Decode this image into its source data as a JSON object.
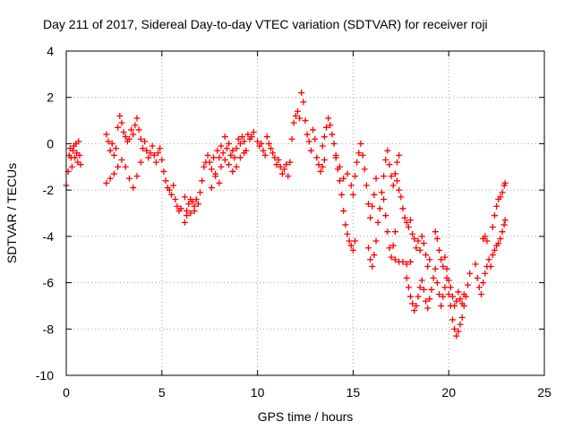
{
  "chart_data": {
    "type": "scatter",
    "title": "Day 211 of 2017, Sidereal Day-to-day VTEC variation (SDTVAR) for receiver roji",
    "xlabel": "GPS time / hours",
    "ylabel": "SDTVAR / TECUs",
    "xlim": [
      0,
      25
    ],
    "ylim": [
      -10,
      4
    ],
    "xticks": [
      0,
      5,
      10,
      15,
      20,
      25
    ],
    "yticks": [
      4,
      2,
      0,
      -2,
      -4,
      -6,
      -8,
      -10
    ],
    "grid": true,
    "marker": "+",
    "color": "#ff0000",
    "series": [
      {
        "name": "SDTVAR",
        "points": [
          [
            0.0,
            -1.8
          ],
          [
            0.1,
            -1.2
          ],
          [
            0.15,
            -0.5
          ],
          [
            0.2,
            -0.2
          ],
          [
            0.25,
            -0.6
          ],
          [
            0.3,
            -1.0
          ],
          [
            0.35,
            -0.3
          ],
          [
            0.4,
            -0.1
          ],
          [
            0.45,
            -0.6
          ],
          [
            0.5,
            0.0
          ],
          [
            0.55,
            -0.4
          ],
          [
            0.6,
            -0.8
          ],
          [
            0.65,
            0.1
          ],
          [
            0.7,
            -0.5
          ],
          [
            0.75,
            -0.9
          ],
          [
            2.1,
            0.4
          ],
          [
            2.2,
            0.1
          ],
          [
            2.3,
            -0.3
          ],
          [
            2.4,
            0.0
          ],
          [
            2.5,
            -0.5
          ],
          [
            2.6,
            -0.2
          ],
          [
            2.7,
            0.7
          ],
          [
            2.8,
            1.2
          ],
          [
            2.9,
            0.9
          ],
          [
            3.0,
            0.5
          ],
          [
            3.1,
            0.3
          ],
          [
            3.2,
            0.1
          ],
          [
            3.3,
            0.2
          ],
          [
            3.4,
            0.6
          ],
          [
            3.5,
            0.4
          ],
          [
            3.6,
            0.8
          ],
          [
            3.7,
            1.1
          ],
          [
            3.8,
            0.6
          ],
          [
            3.9,
            0.2
          ],
          [
            4.0,
            -0.2
          ],
          [
            4.1,
            0.1
          ],
          [
            4.2,
            -0.3
          ],
          [
            4.3,
            -0.6
          ],
          [
            4.4,
            -0.4
          ],
          [
            4.5,
            -0.1
          ],
          [
            4.6,
            -0.5
          ],
          [
            4.7,
            -0.8
          ],
          [
            4.8,
            -0.4
          ],
          [
            4.9,
            -0.2
          ],
          [
            2.1,
            -1.7
          ],
          [
            2.3,
            -1.5
          ],
          [
            2.5,
            -1.3
          ],
          [
            2.7,
            -1.0
          ],
          [
            2.9,
            -0.7
          ],
          [
            3.1,
            -1.0
          ],
          [
            3.3,
            -1.5
          ],
          [
            3.5,
            -1.9
          ],
          [
            3.7,
            -1.4
          ],
          [
            3.9,
            -0.8
          ],
          [
            5.0,
            -0.7
          ],
          [
            5.1,
            -1.2
          ],
          [
            5.2,
            -1.6
          ],
          [
            5.3,
            -1.9
          ],
          [
            5.4,
            -2.0
          ],
          [
            5.5,
            -2.2
          ],
          [
            5.6,
            -1.8
          ],
          [
            5.7,
            -2.4
          ],
          [
            5.8,
            -2.7
          ],
          [
            5.9,
            -2.9
          ],
          [
            6.0,
            -2.8
          ],
          [
            6.2,
            -3.4
          ],
          [
            6.3,
            -3.1
          ],
          [
            6.4,
            -2.6
          ],
          [
            6.5,
            -2.4
          ],
          [
            6.6,
            -2.5
          ],
          [
            6.7,
            -2.9
          ],
          [
            6.8,
            -2.4
          ],
          [
            6.9,
            -2.6
          ],
          [
            7.0,
            -2.1
          ],
          [
            6.2,
            -2.3
          ],
          [
            6.3,
            -2.9
          ],
          [
            6.5,
            -3.0
          ],
          [
            6.7,
            -2.7
          ],
          [
            7.1,
            -1.6
          ],
          [
            7.2,
            -1.0
          ],
          [
            7.3,
            -0.8
          ],
          [
            7.4,
            -0.5
          ],
          [
            7.5,
            -0.8
          ],
          [
            7.6,
            -1.1
          ],
          [
            7.7,
            -0.6
          ],
          [
            7.8,
            -1.3
          ],
          [
            7.9,
            -0.3
          ],
          [
            8.0,
            -0.6
          ],
          [
            8.1,
            -0.1
          ],
          [
            8.2,
            -0.4
          ],
          [
            8.3,
            0.3
          ],
          [
            8.4,
            -0.2
          ],
          [
            8.5,
            0.0
          ],
          [
            8.6,
            -0.5
          ],
          [
            8.7,
            -0.3
          ],
          [
            8.8,
            -0.6
          ],
          [
            8.9,
            -0.2
          ],
          [
            9.0,
            0.2
          ],
          [
            9.1,
            0.0
          ],
          [
            9.2,
            0.3
          ],
          [
            9.3,
            0.1
          ],
          [
            9.4,
            -0.3
          ],
          [
            9.5,
            0.4
          ],
          [
            9.6,
            0.2
          ],
          [
            9.7,
            0.3
          ],
          [
            9.8,
            0.5
          ],
          [
            8.1,
            -1.0
          ],
          [
            8.3,
            -0.7
          ],
          [
            8.5,
            -0.9
          ],
          [
            8.7,
            -1.2
          ],
          [
            8.9,
            -1.0
          ],
          [
            9.1,
            -0.6
          ],
          [
            9.3,
            -0.4
          ],
          [
            7.6,
            -1.9
          ],
          [
            7.8,
            -1.4
          ],
          [
            8.0,
            -1.7
          ],
          [
            10.0,
            0.1
          ],
          [
            10.1,
            -0.1
          ],
          [
            10.2,
            0.0
          ],
          [
            10.3,
            -0.3
          ],
          [
            10.4,
            -0.5
          ],
          [
            10.5,
            0.3
          ],
          [
            10.6,
            0.0
          ],
          [
            10.7,
            -0.2
          ],
          [
            10.8,
            -0.4
          ],
          [
            10.9,
            -0.6
          ],
          [
            11.0,
            -0.9
          ],
          [
            11.1,
            -0.7
          ],
          [
            11.2,
            -1.0
          ],
          [
            11.3,
            -1.3
          ],
          [
            11.4,
            -1.1
          ],
          [
            11.5,
            -0.9
          ],
          [
            11.6,
            -1.4
          ],
          [
            11.7,
            -0.8
          ],
          [
            11.8,
            0.2
          ],
          [
            11.9,
            0.9
          ],
          [
            12.0,
            1.2
          ],
          [
            12.1,
            1.4
          ],
          [
            12.2,
            1.1
          ],
          [
            12.3,
            2.2
          ],
          [
            12.4,
            1.8
          ],
          [
            12.5,
            1.0
          ],
          [
            12.6,
            0.4
          ],
          [
            12.7,
            0.1
          ],
          [
            12.8,
            -0.3
          ],
          [
            12.9,
            0.6
          ],
          [
            13.0,
            0.2
          ],
          [
            13.1,
            -0.6
          ],
          [
            13.2,
            -0.9
          ],
          [
            13.3,
            -1.2
          ],
          [
            13.4,
            -1.0
          ],
          [
            13.5,
            -0.7
          ],
          [
            13.4,
            -0.1
          ],
          [
            13.5,
            0.3
          ],
          [
            13.6,
            0.7
          ],
          [
            13.7,
            1.1
          ],
          [
            13.8,
            0.8
          ],
          [
            13.9,
            0.4
          ],
          [
            14.0,
            0.0
          ],
          [
            14.1,
            -0.5
          ],
          [
            14.2,
            -1.1
          ],
          [
            14.3,
            -1.6
          ],
          [
            14.4,
            -2.2
          ],
          [
            14.5,
            -2.9
          ],
          [
            14.6,
            -3.5
          ],
          [
            14.7,
            -3.9
          ],
          [
            14.8,
            -4.2
          ],
          [
            14.9,
            -4.4
          ],
          [
            15.0,
            -4.6
          ],
          [
            15.1,
            -4.2
          ],
          [
            14.1,
            -0.6
          ],
          [
            14.3,
            -1.0
          ],
          [
            14.5,
            -1.5
          ],
          [
            14.7,
            -1.3
          ],
          [
            14.9,
            -1.8
          ],
          [
            15.0,
            -2.2
          ],
          [
            15.1,
            -1.4
          ],
          [
            15.2,
            -0.8
          ],
          [
            15.3,
            -0.4
          ],
          [
            15.4,
            0.0
          ],
          [
            15.5,
            -0.5
          ],
          [
            15.6,
            -1.1
          ],
          [
            15.7,
            -1.8
          ],
          [
            15.8,
            -2.6
          ],
          [
            15.9,
            -3.2
          ],
          [
            16.0,
            -2.7
          ],
          [
            16.1,
            -2.2
          ],
          [
            16.2,
            -1.5
          ],
          [
            15.8,
            -4.5
          ],
          [
            15.9,
            -5.0
          ],
          [
            16.0,
            -5.3
          ],
          [
            16.1,
            -4.8
          ],
          [
            16.2,
            -4.2
          ],
          [
            16.3,
            -3.4
          ],
          [
            16.4,
            -2.8
          ],
          [
            16.5,
            -2.1
          ],
          [
            16.6,
            -1.4
          ],
          [
            16.7,
            -0.7
          ],
          [
            16.8,
            -0.3
          ],
          [
            16.9,
            -0.9
          ],
          [
            17.0,
            -1.4
          ],
          [
            17.1,
            -1.8
          ],
          [
            17.2,
            -1.3
          ],
          [
            17.3,
            -0.8
          ],
          [
            17.4,
            -0.5
          ],
          [
            16.6,
            -2.4
          ],
          [
            16.7,
            -3.1
          ],
          [
            16.8,
            -3.8
          ],
          [
            16.9,
            -4.5
          ],
          [
            17.0,
            -4.9
          ],
          [
            17.1,
            -4.4
          ],
          [
            17.2,
            -3.8
          ],
          [
            17.2,
            -5.0
          ],
          [
            17.4,
            -5.1
          ],
          [
            17.6,
            -5.1
          ],
          [
            17.8,
            -5.2
          ],
          [
            18.0,
            -5.1
          ],
          [
            17.3,
            -1.6
          ],
          [
            17.4,
            -2.0
          ],
          [
            17.5,
            -2.3
          ],
          [
            17.6,
            -2.8
          ],
          [
            17.7,
            -3.2
          ],
          [
            17.8,
            -3.4
          ],
          [
            17.9,
            -3.6
          ],
          [
            18.0,
            -3.3
          ],
          [
            18.1,
            -3.9
          ],
          [
            18.2,
            -4.1
          ],
          [
            18.3,
            -4.5
          ],
          [
            18.4,
            -4.2
          ],
          [
            18.5,
            -4.6
          ],
          [
            18.6,
            -4.0
          ],
          [
            18.7,
            -4.3
          ],
          [
            18.8,
            -4.8
          ],
          [
            18.9,
            -5.3
          ],
          [
            19.0,
            -5.0
          ],
          [
            17.8,
            -5.8
          ],
          [
            17.9,
            -6.2
          ],
          [
            18.0,
            -6.6
          ],
          [
            18.1,
            -6.9
          ],
          [
            18.2,
            -7.2
          ],
          [
            18.3,
            -7.0
          ],
          [
            18.4,
            -6.6
          ],
          [
            18.5,
            -6.2
          ],
          [
            18.6,
            -5.9
          ],
          [
            18.7,
            -6.3
          ],
          [
            18.8,
            -6.8
          ],
          [
            18.9,
            -7.1
          ],
          [
            19.0,
            -6.7
          ],
          [
            19.1,
            -6.3
          ],
          [
            19.2,
            -5.8
          ],
          [
            19.3,
            -5.4
          ],
          [
            19.4,
            -6.0
          ],
          [
            19.5,
            -6.5
          ],
          [
            19.6,
            -7.0
          ],
          [
            19.7,
            -6.6
          ],
          [
            19.8,
            -6.2
          ],
          [
            19.9,
            -5.8
          ],
          [
            20.0,
            -6.5
          ],
          [
            20.1,
            -7.0
          ],
          [
            20.2,
            -7.6
          ],
          [
            20.3,
            -8.0
          ],
          [
            20.4,
            -8.3
          ],
          [
            20.5,
            -8.1
          ],
          [
            20.6,
            -7.8
          ],
          [
            20.7,
            -7.5
          ],
          [
            20.8,
            -7.0
          ],
          [
            20.9,
            -6.6
          ],
          [
            21.0,
            -6.1
          ],
          [
            21.1,
            -5.6
          ],
          [
            19.3,
            -3.8
          ],
          [
            19.4,
            -4.1
          ],
          [
            19.5,
            -4.6
          ],
          [
            19.6,
            -5.0
          ],
          [
            19.7,
            -5.3
          ],
          [
            19.8,
            -4.9
          ],
          [
            19.9,
            -5.4
          ],
          [
            20.0,
            -5.9
          ],
          [
            20.1,
            -6.2
          ],
          [
            20.2,
            -6.6
          ],
          [
            20.3,
            -7.0
          ],
          [
            20.4,
            -6.8
          ],
          [
            20.5,
            -6.4
          ],
          [
            20.6,
            -6.7
          ],
          [
            20.7,
            -6.9
          ],
          [
            20.8,
            -6.5
          ],
          [
            21.4,
            -5.2
          ],
          [
            21.5,
            -5.8
          ],
          [
            21.6,
            -6.2
          ],
          [
            21.7,
            -6.5
          ],
          [
            21.8,
            -6.0
          ],
          [
            21.9,
            -5.6
          ],
          [
            22.0,
            -5.3
          ],
          [
            22.1,
            -5.0
          ],
          [
            22.2,
            -5.3
          ],
          [
            22.3,
            -4.8
          ],
          [
            21.8,
            -4.1
          ],
          [
            21.9,
            -4.0
          ],
          [
            22.0,
            -4.2
          ],
          [
            22.3,
            -3.6
          ],
          [
            22.4,
            -3.1
          ],
          [
            22.5,
            -2.7
          ],
          [
            22.6,
            -2.4
          ],
          [
            22.7,
            -2.3
          ],
          [
            22.8,
            -2.1
          ],
          [
            22.9,
            -1.8
          ],
          [
            22.95,
            -1.7
          ],
          [
            22.4,
            -4.6
          ],
          [
            22.5,
            -4.4
          ],
          [
            22.6,
            -4.3
          ],
          [
            22.7,
            -4.1
          ],
          [
            22.8,
            -3.8
          ],
          [
            22.9,
            -3.5
          ],
          [
            22.95,
            -3.3
          ]
        ]
      }
    ]
  }
}
